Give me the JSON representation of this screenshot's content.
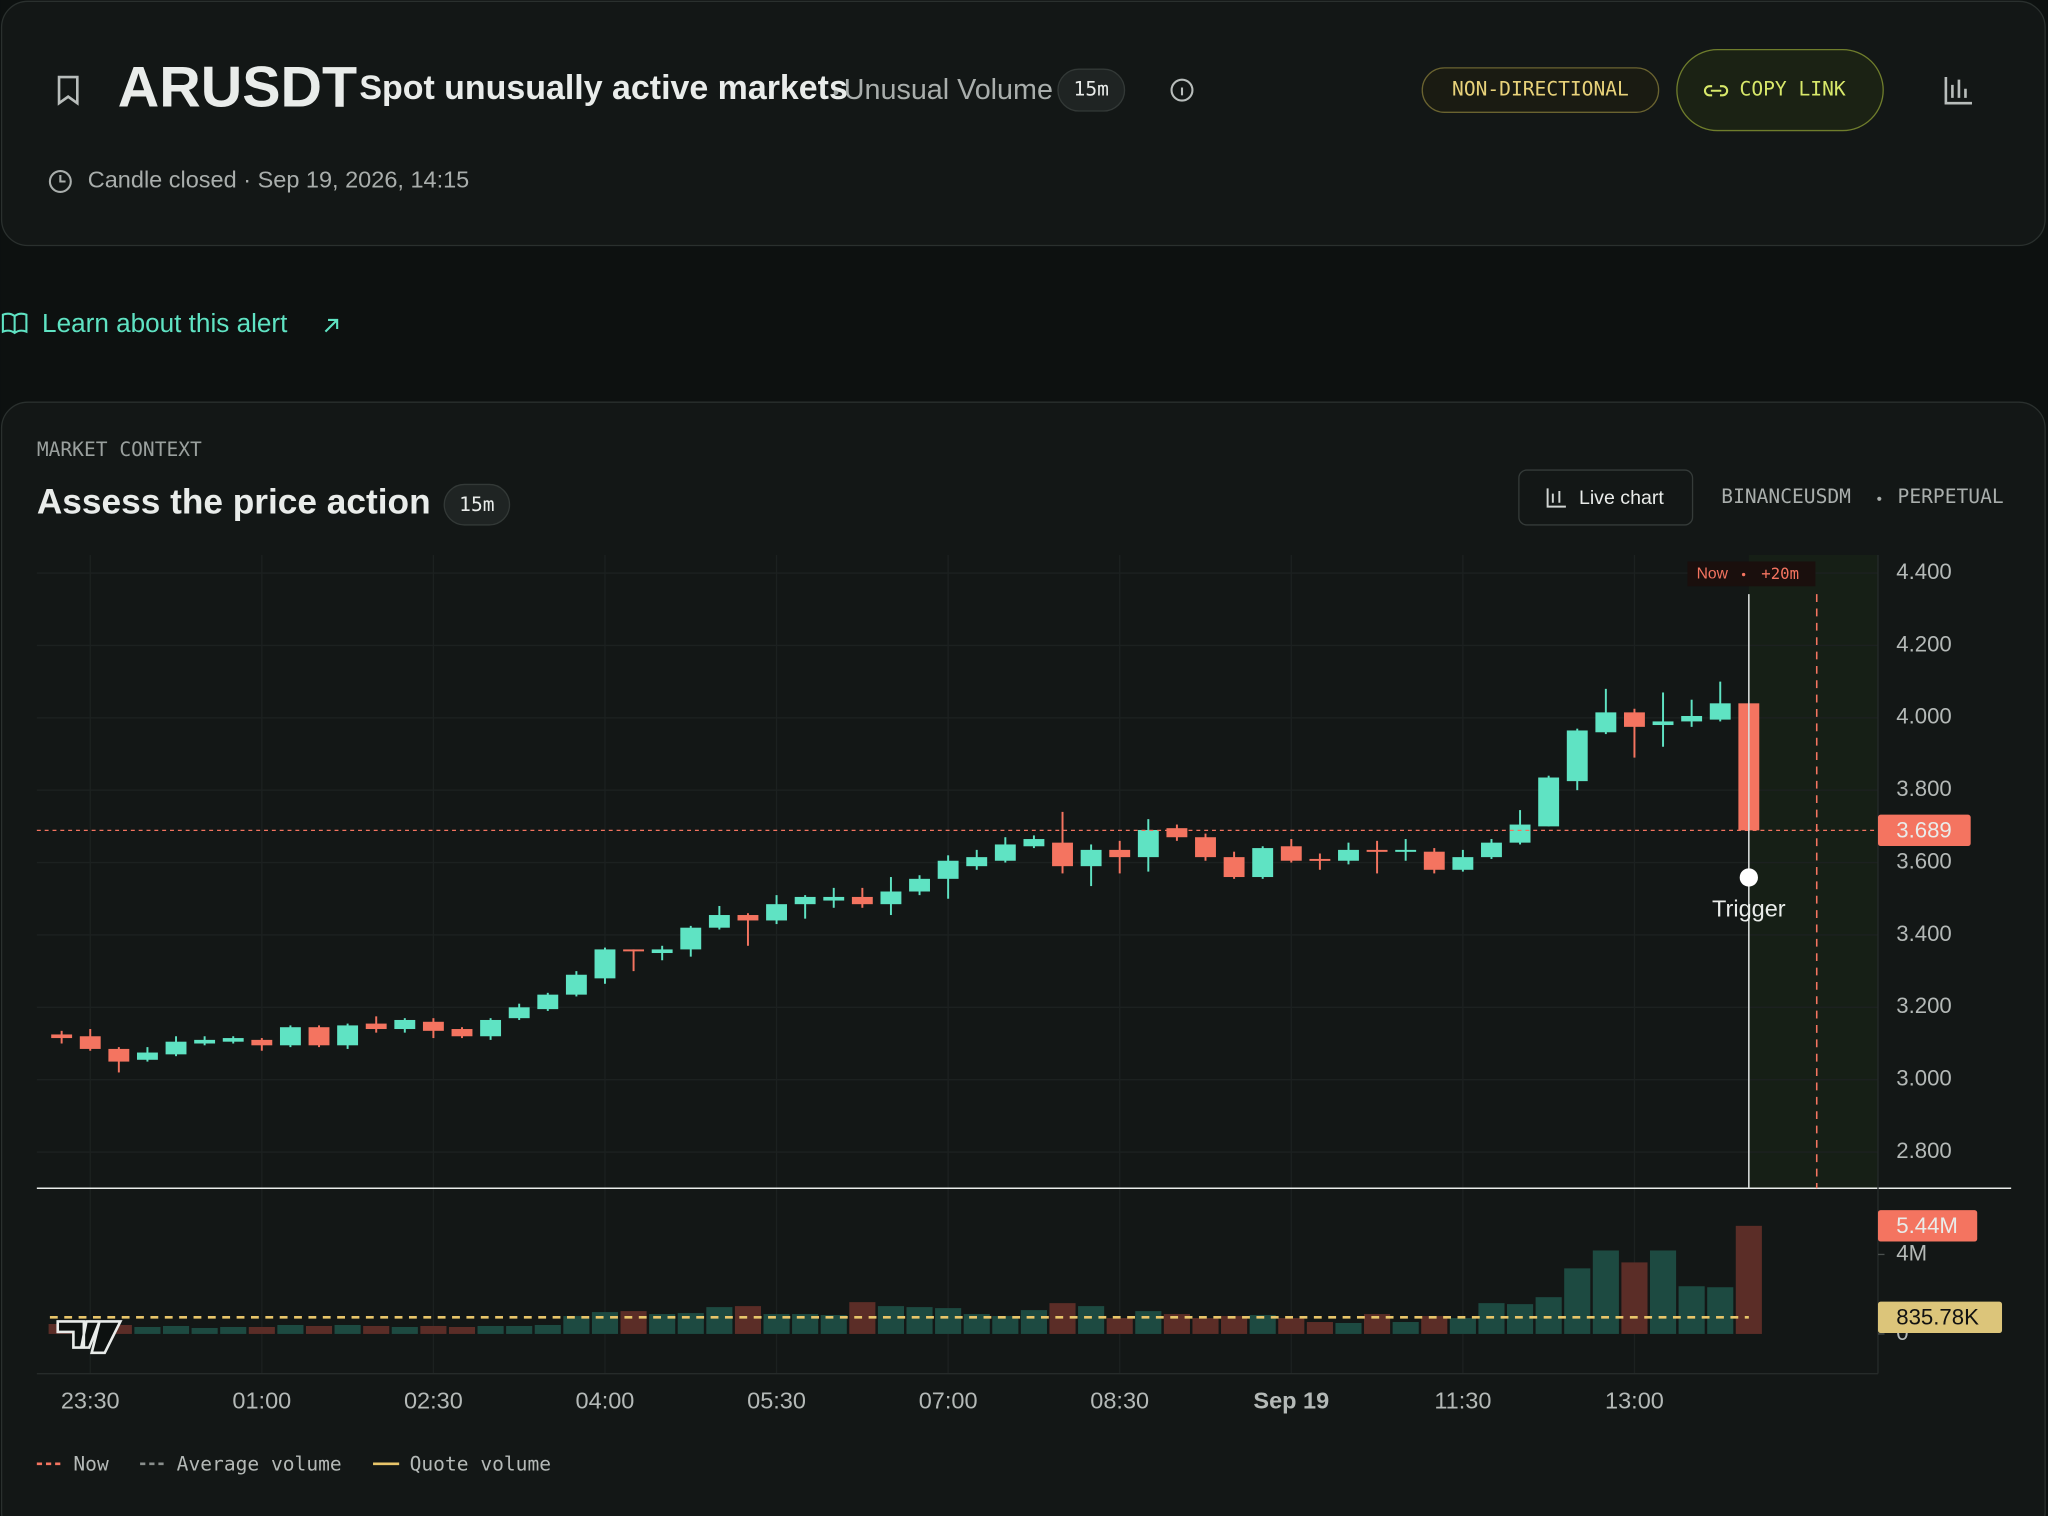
{
  "header": {
    "symbol": "ARUSDT",
    "title": "Spot unusually active markets",
    "alert_type": "Unusual Volume",
    "interval": "15m",
    "badge": "NON-DIRECTIONAL",
    "copy_link": "COPY LINK",
    "candle_closed": "Candle closed · Sep 19, 2026, 14:15"
  },
  "learn_link": "Learn about this alert",
  "panel": {
    "eyebrow": "MARKET CONTEXT",
    "title": "Assess the price action",
    "interval": "15m",
    "live_chart": "Live chart",
    "exchange": "BINANCEUSDM",
    "contract": "PERPETUAL"
  },
  "chart_data": {
    "type": "candlestick",
    "categories": [
      null,
      "23:30",
      null,
      null,
      null,
      null,
      null,
      "01:00",
      null,
      null,
      null,
      null,
      null,
      "02:30",
      null,
      null,
      null,
      null,
      null,
      "04:00",
      null,
      null,
      null,
      null,
      null,
      "05:30",
      null,
      null,
      null,
      null,
      null,
      "07:00",
      null,
      null,
      null,
      null,
      null,
      "08:30",
      null,
      null,
      null,
      null,
      null,
      "Sep 19",
      null,
      null,
      null,
      null,
      null,
      "11:30",
      null,
      null,
      null,
      null,
      null,
      "13:00",
      null,
      null,
      null,
      null
    ],
    "open": [
      3.125,
      3.12,
      3.085,
      3.055,
      3.07,
      3.1,
      3.105,
      3.11,
      3.095,
      3.145,
      3.095,
      3.155,
      3.14,
      3.16,
      3.14,
      3.12,
      3.17,
      3.195,
      3.235,
      3.28,
      3.36,
      3.35,
      3.36,
      3.42,
      3.455,
      3.44,
      3.485,
      3.495,
      3.505,
      3.485,
      3.52,
      3.555,
      3.59,
      3.605,
      3.645,
      3.655,
      3.59,
      3.635,
      3.615,
      3.695,
      3.67,
      3.615,
      3.56,
      3.645,
      3.61,
      3.605,
      3.635,
      3.63,
      3.63,
      3.58,
      3.615,
      3.655,
      3.7,
      3.825,
      3.96,
      4.015,
      3.98,
      3.99,
      3.995,
      4.04
    ],
    "high": [
      3.135,
      3.14,
      3.09,
      3.09,
      3.12,
      3.12,
      3.12,
      3.115,
      3.15,
      3.15,
      3.155,
      3.175,
      3.17,
      3.17,
      3.145,
      3.17,
      3.21,
      3.24,
      3.3,
      3.365,
      3.36,
      3.37,
      3.425,
      3.48,
      3.46,
      3.51,
      3.51,
      3.53,
      3.53,
      3.56,
      3.565,
      3.62,
      3.635,
      3.67,
      3.675,
      3.74,
      3.65,
      3.66,
      3.72,
      3.705,
      3.68,
      3.63,
      3.645,
      3.665,
      3.625,
      3.655,
      3.66,
      3.665,
      3.64,
      3.635,
      3.665,
      3.745,
      3.84,
      3.97,
      4.08,
      4.025,
      4.07,
      4.05,
      4.1,
      4.04
    ],
    "low": [
      3.1,
      3.08,
      3.02,
      3.05,
      3.065,
      3.095,
      3.1,
      3.08,
      3.09,
      3.09,
      3.085,
      3.13,
      3.13,
      3.115,
      3.115,
      3.11,
      3.165,
      3.19,
      3.23,
      3.265,
      3.3,
      3.33,
      3.34,
      3.415,
      3.37,
      3.43,
      3.445,
      3.475,
      3.475,
      3.455,
      3.51,
      3.5,
      3.58,
      3.6,
      3.64,
      3.57,
      3.535,
      3.57,
      3.575,
      3.66,
      3.605,
      3.555,
      3.555,
      3.6,
      3.58,
      3.595,
      3.57,
      3.605,
      3.57,
      3.575,
      3.61,
      3.65,
      3.7,
      3.8,
      3.955,
      3.89,
      3.92,
      3.975,
      3.99,
      3.689
    ],
    "close": [
      3.115,
      3.085,
      3.05,
      3.075,
      3.105,
      3.11,
      3.115,
      3.095,
      3.145,
      3.095,
      3.15,
      3.14,
      3.165,
      3.135,
      3.12,
      3.165,
      3.2,
      3.235,
      3.29,
      3.36,
      3.355,
      3.36,
      3.42,
      3.455,
      3.44,
      3.485,
      3.505,
      3.505,
      3.485,
      3.52,
      3.555,
      3.605,
      3.615,
      3.65,
      3.665,
      3.59,
      3.635,
      3.615,
      3.69,
      3.67,
      3.615,
      3.56,
      3.64,
      3.605,
      3.605,
      3.635,
      3.63,
      3.635,
      3.58,
      3.615,
      3.655,
      3.705,
      3.835,
      3.965,
      4.015,
      3.975,
      3.99,
      4.005,
      4.04,
      3.689
    ],
    "ylim": [
      2.7,
      4.45
    ],
    "yticks": [
      {
        "value": 2.8,
        "label": "2.800"
      },
      {
        "value": 3.0,
        "label": "3.000"
      },
      {
        "value": 3.2,
        "label": "3.200"
      },
      {
        "value": 3.4,
        "label": "3.400"
      },
      {
        "value": 3.6,
        "label": "3.600"
      },
      {
        "value": 3.8,
        "label": "3.800"
      },
      {
        "value": 4.0,
        "label": "4.000"
      },
      {
        "value": 4.2,
        "label": "4.200"
      },
      {
        "value": 4.4,
        "label": "4.400"
      }
    ],
    "grid": true,
    "up_color": "#5fe3c3",
    "down_color": "#f47460",
    "now_label": "Now",
    "offset_label": "+20m",
    "trigger_label": "Trigger",
    "volume": {
      "values": [
        0.5,
        0.4,
        0.45,
        0.35,
        0.4,
        0.3,
        0.35,
        0.35,
        0.45,
        0.4,
        0.45,
        0.4,
        0.35,
        0.4,
        0.35,
        0.4,
        0.4,
        0.45,
        0.9,
        1.1,
        1.15,
        1.0,
        1.05,
        1.35,
        1.4,
        1.0,
        1.0,
        0.95,
        1.6,
        1.4,
        1.35,
        1.3,
        1.0,
        0.9,
        1.2,
        1.55,
        1.4,
        0.8,
        1.15,
        1.0,
        0.8,
        0.9,
        0.95,
        0.8,
        0.6,
        0.55,
        1.0,
        0.6,
        0.9,
        0.8,
        1.55,
        1.5,
        1.85,
        3.3,
        4.2,
        3.6,
        4.2,
        2.4,
        2.35,
        5.44
      ],
      "ylim": [
        -2,
        7.2
      ],
      "yticks": [
        0,
        {
          "value": 4,
          "label": "4M"
        }
      ],
      "current": {
        "value": 5.44,
        "label": "5.44M"
      },
      "average": {
        "value": 0.83578,
        "label": "835.78K"
      },
      "up_color": "#1d4a41",
      "down_color": "#5b2d27"
    },
    "legend": [
      {
        "name": "Now",
        "color": "#f47460"
      },
      {
        "name": "Average volume",
        "color": "#8a8f8d"
      },
      {
        "name": "Quote volume",
        "color": "#e8c56a"
      }
    ]
  }
}
